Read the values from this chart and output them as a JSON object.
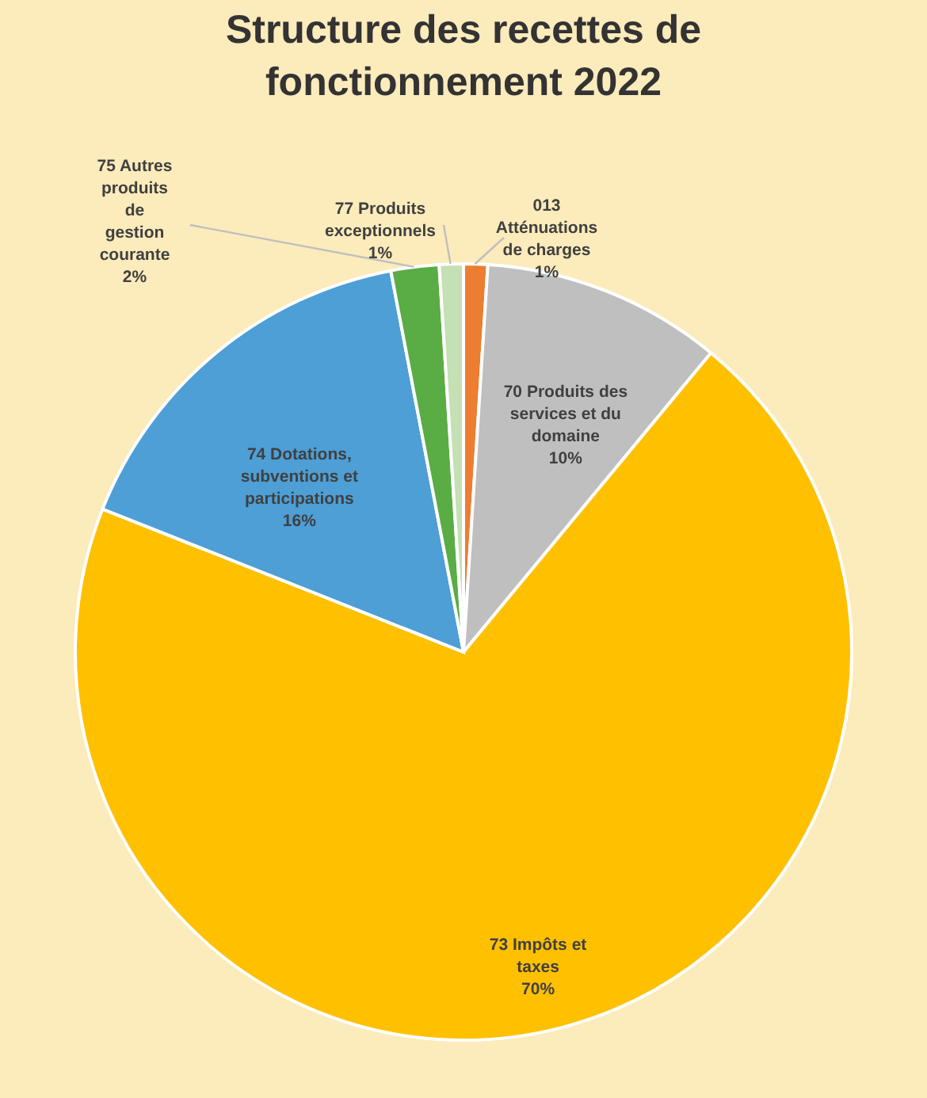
{
  "chart_data": {
    "type": "pie",
    "title": "Structure des recettes de fonctionnement 2022",
    "categories": [
      "013 Atténuations de charges",
      "70 Produits des services et du domaine",
      "73 Impôts et taxes",
      "74 Dotations, subventions et participations",
      "75 Autres produits de gestion courante",
      "77 Produits exceptionnels"
    ],
    "values": [
      1,
      10,
      70,
      16,
      2,
      1
    ],
    "value_labels": [
      "1%",
      "10%",
      "70%",
      "16%",
      "2%",
      "1%"
    ],
    "colors": [
      "#ed7d31",
      "#bfbfbf",
      "#ffc000",
      "#4d9fd6",
      "#5aac44",
      "#c5e0b4"
    ]
  }
}
